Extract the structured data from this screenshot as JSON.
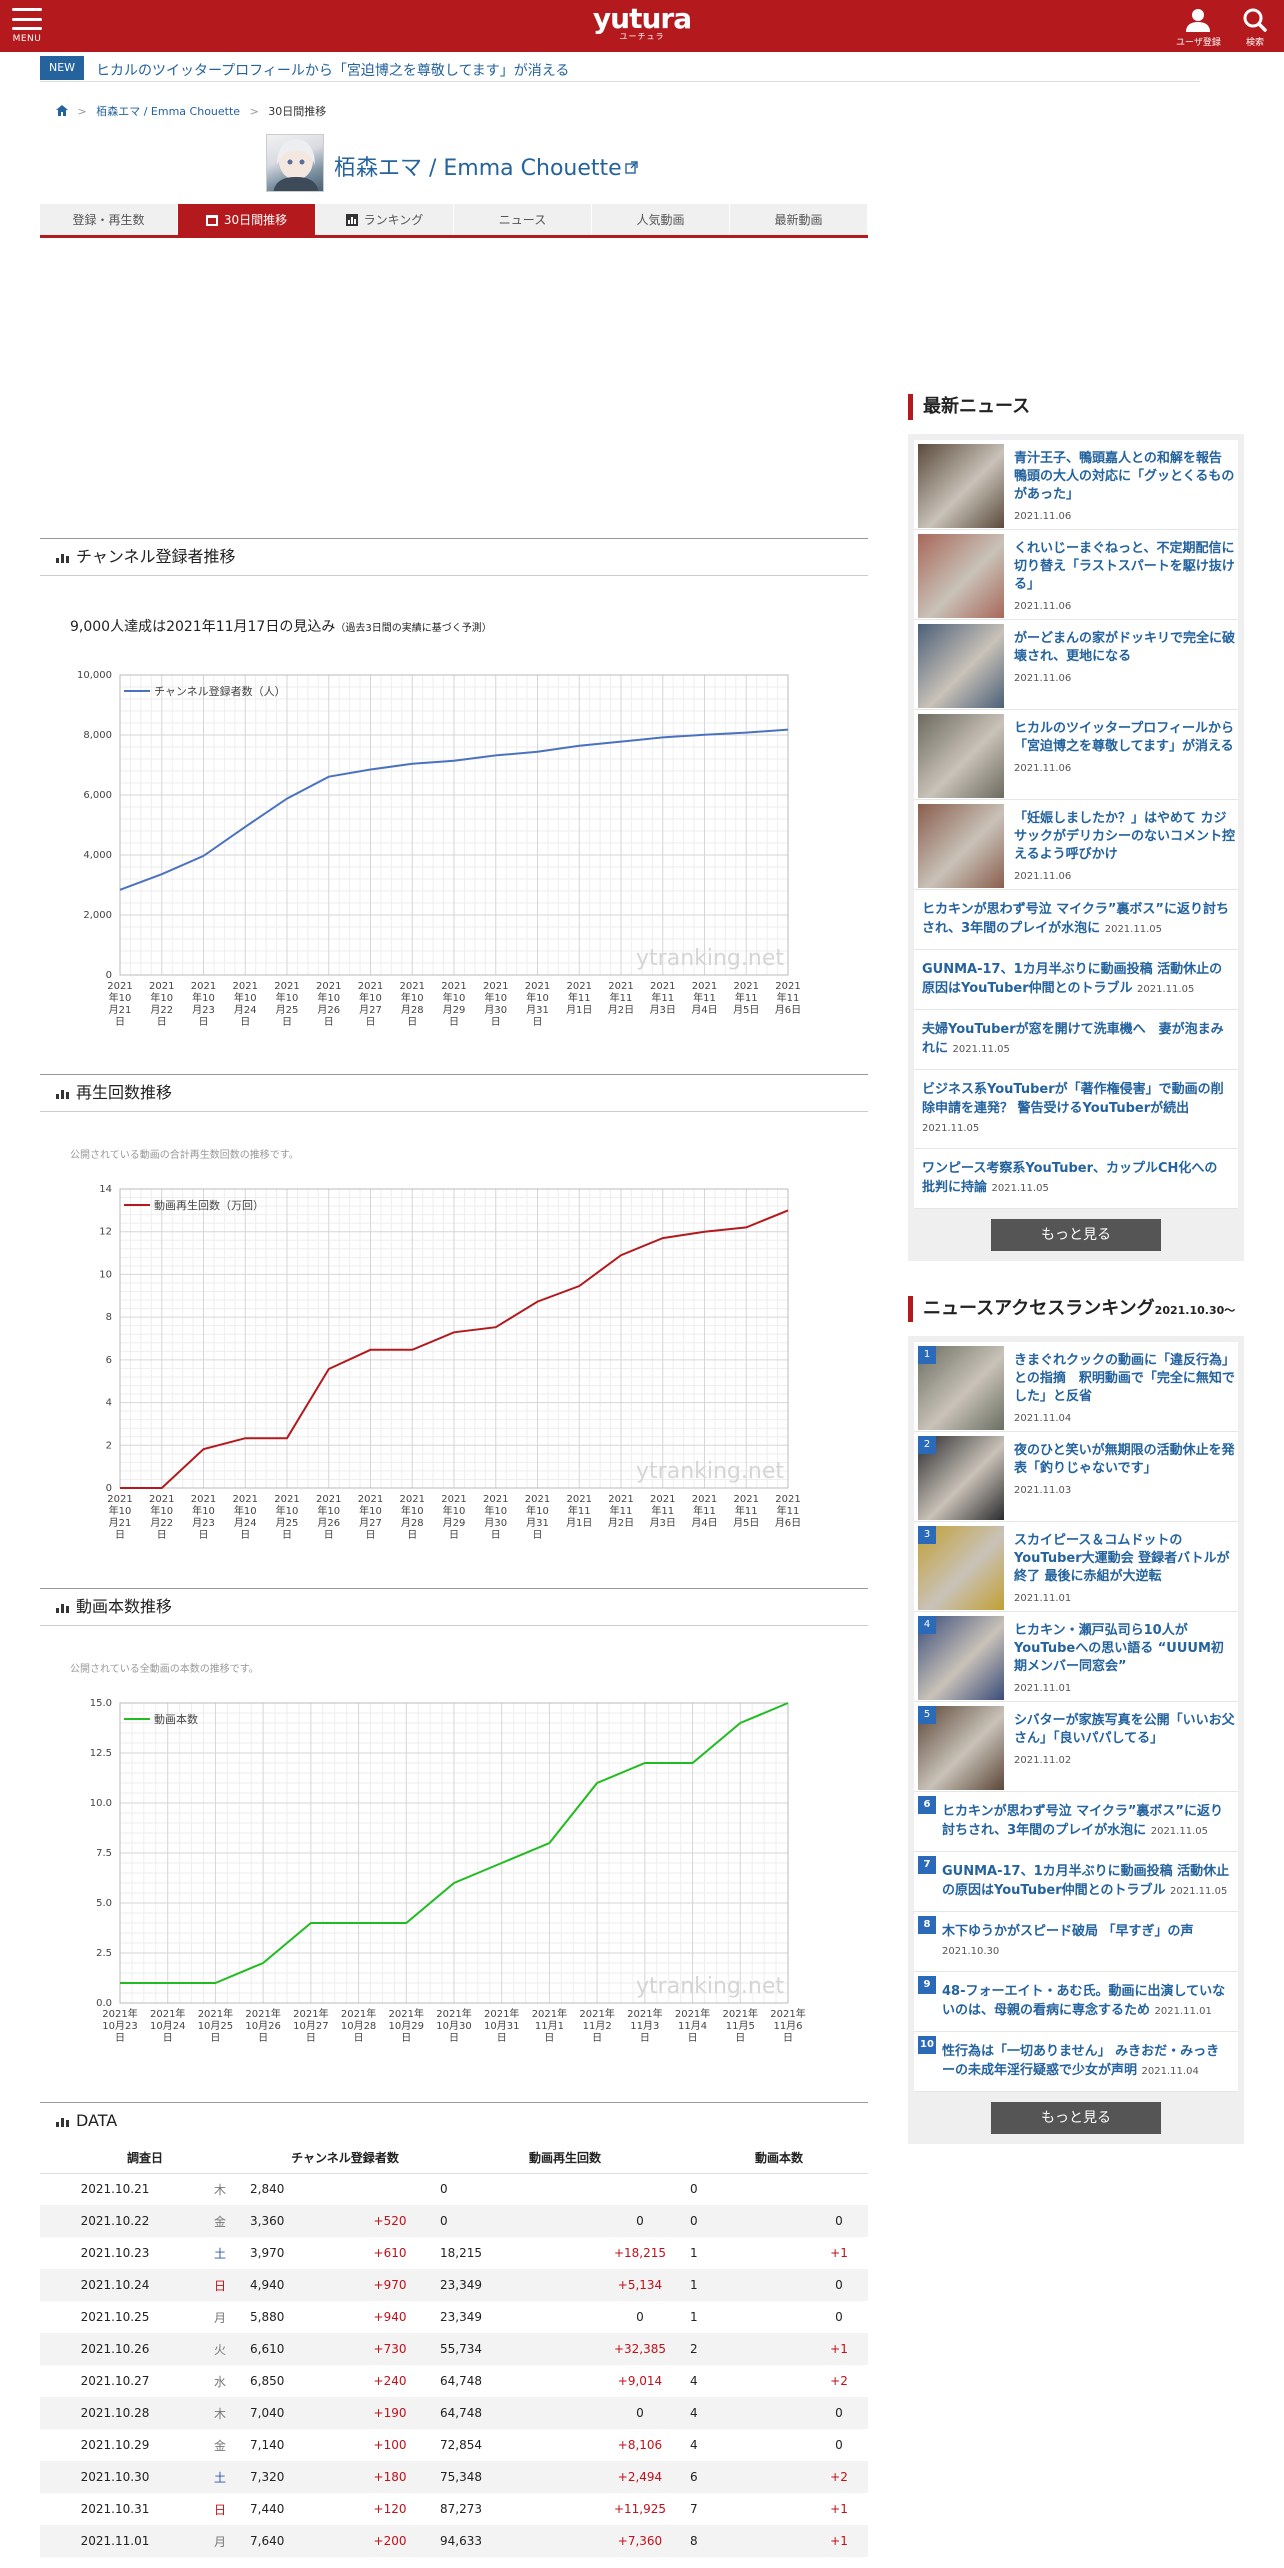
{
  "header": {
    "menu_label": "MENU",
    "logo": "yutura",
    "logo_sub": "ユーチュラ",
    "user_label": "ユーザ登録",
    "search_label": "検索",
    "colors": {
      "brand": "#b3191d",
      "link": "#24639e"
    }
  },
  "news_ticker": {
    "tag": "NEW",
    "title": "ヒカルのツイッタープロフィールから「宮迫博之を尊敬してます」が消える"
  },
  "breadcrumb": {
    "channel": "栢森エマ / Emma Chouette",
    "current": "30日間推移"
  },
  "channel": {
    "name": "栢森エマ / Emma Chouette"
  },
  "tabs": [
    {
      "label": "登録・再生数",
      "active": false
    },
    {
      "label": "30日間推移",
      "active": true
    },
    {
      "label": "ランキング",
      "active": false
    },
    {
      "label": "ニュース",
      "active": false
    },
    {
      "label": "人気動画",
      "active": false
    },
    {
      "label": "最新動画",
      "active": false
    }
  ],
  "sections": {
    "subscribers": "チャンネル登録者推移",
    "views": "再生回数推移",
    "videos": "動画本数推移",
    "data": "DATA"
  },
  "forecast": {
    "main": "9,000人達成は2021年11月17日の見込み",
    "sub": "（過去3日間の実績に基づく予測）"
  },
  "notes": {
    "views": "公開されている動画の合計再生数回数の推移です。",
    "videos": "公開されている全動画の本数の推移です。"
  },
  "watermark": "ytranking.net",
  "chart_data": [
    {
      "type": "line",
      "color": "#4a72c0",
      "x": [
        "2021年10月21日",
        "2021年10月22日",
        "2021年10月23日",
        "2021年10月24日",
        "2021年10月25日",
        "2021年10月26日",
        "2021年10月27日",
        "2021年10月28日",
        "2021年10月29日",
        "2021年10月30日",
        "2021年10月31日",
        "2021年11月1日",
        "2021年11月2日",
        "2021年11月3日",
        "2021年11月4日",
        "2021年11月5日",
        "2021年11月6日"
      ],
      "tick_labels": [
        [
          "2021",
          "年10",
          "月21",
          "日"
        ],
        [
          "2021",
          "年10",
          "月22",
          "日"
        ],
        [
          "2021",
          "年10",
          "月23",
          "日"
        ],
        [
          "2021",
          "年10",
          "月24",
          "日"
        ],
        [
          "2021",
          "年10",
          "月25",
          "日"
        ],
        [
          "2021",
          "年10",
          "月26",
          "日"
        ],
        [
          "2021",
          "年10",
          "月27",
          "日"
        ],
        [
          "2021",
          "年10",
          "月28",
          "日"
        ],
        [
          "2021",
          "年10",
          "月29",
          "日"
        ],
        [
          "2021",
          "年10",
          "月30",
          "日"
        ],
        [
          "2021",
          "年10",
          "月31",
          "日"
        ],
        [
          "2021",
          "年11",
          "月1日"
        ],
        [
          "2021",
          "年11",
          "月2日"
        ],
        [
          "2021",
          "年11",
          "月3日"
        ],
        [
          "2021",
          "年11",
          "月4日"
        ],
        [
          "2021",
          "年11",
          "月5日"
        ],
        [
          "2021",
          "年11",
          "月6日"
        ]
      ],
      "series": [
        {
          "name": "チャンネル登録者数（人）",
          "values": [
            2840,
            3360,
            3970,
            4940,
            5880,
            6610,
            6850,
            7040,
            7140,
            7320,
            7440,
            7640,
            7780,
            7920,
            8010,
            8080,
            8180
          ]
        }
      ],
      "yticks": [
        "0",
        "2,000",
        "4,000",
        "6,000",
        "8,000",
        "10,000"
      ],
      "ylim": [
        0,
        10000
      ],
      "grid": true,
      "legend": "top-left"
    },
    {
      "type": "line",
      "color": "#b3191d",
      "x": [
        "2021年10月21日",
        "2021年10月22日",
        "2021年10月23日",
        "2021年10月24日",
        "2021年10月25日",
        "2021年10月26日",
        "2021年10月27日",
        "2021年10月28日",
        "2021年10月29日",
        "2021年10月30日",
        "2021年10月31日",
        "2021年11月1日",
        "2021年11月2日",
        "2021年11月3日",
        "2021年11月4日",
        "2021年11月5日",
        "2021年11月6日"
      ],
      "tick_labels": [
        [
          "2021",
          "年10",
          "月21",
          "日"
        ],
        [
          "2021",
          "年10",
          "月22",
          "日"
        ],
        [
          "2021",
          "年10",
          "月23",
          "日"
        ],
        [
          "2021",
          "年10",
          "月24",
          "日"
        ],
        [
          "2021",
          "年10",
          "月25",
          "日"
        ],
        [
          "2021",
          "年10",
          "月26",
          "日"
        ],
        [
          "2021",
          "年10",
          "月27",
          "日"
        ],
        [
          "2021",
          "年10",
          "月28",
          "日"
        ],
        [
          "2021",
          "年10",
          "月29",
          "日"
        ],
        [
          "2021",
          "年10",
          "月30",
          "日"
        ],
        [
          "2021",
          "年10",
          "月31",
          "日"
        ],
        [
          "2021",
          "年11",
          "月1日"
        ],
        [
          "2021",
          "年11",
          "月2日"
        ],
        [
          "2021",
          "年11",
          "月3日"
        ],
        [
          "2021",
          "年11",
          "月4日"
        ],
        [
          "2021",
          "年11",
          "月5日"
        ],
        [
          "2021",
          "年11",
          "月6日"
        ]
      ],
      "series": [
        {
          "name": "動画再生回数（万回）",
          "values": [
            0,
            0,
            1.82,
            2.33,
            2.33,
            5.57,
            6.47,
            6.47,
            7.29,
            7.53,
            8.73,
            9.46,
            10.9,
            11.7,
            12.0,
            12.2,
            13.0
          ]
        }
      ],
      "yticks": [
        "0",
        "2",
        "4",
        "6",
        "8",
        "10",
        "12",
        "14"
      ],
      "ylim": [
        0,
        14
      ],
      "grid": true,
      "legend": "top-left"
    },
    {
      "type": "line",
      "color": "#22bb22",
      "x": [
        "2021年10月23日",
        "2021年10月24日",
        "2021年10月25日",
        "2021年10月26日",
        "2021年10月27日",
        "2021年10月28日",
        "2021年10月29日",
        "2021年10月30日",
        "2021年10月31日",
        "2021年11月1日",
        "2021年11月2日",
        "2021年11月3日",
        "2021年11月4日",
        "2021年11月5日",
        "2021年11月6日"
      ],
      "tick_labels": [
        [
          "2021年",
          "10月23",
          "日"
        ],
        [
          "2021年",
          "10月24",
          "日"
        ],
        [
          "2021年",
          "10月25",
          "日"
        ],
        [
          "2021年",
          "10月26",
          "日"
        ],
        [
          "2021年",
          "10月27",
          "日"
        ],
        [
          "2021年",
          "10月28",
          "日"
        ],
        [
          "2021年",
          "10月29",
          "日"
        ],
        [
          "2021年",
          "10月30",
          "日"
        ],
        [
          "2021年",
          "10月31",
          "日"
        ],
        [
          "2021年",
          "11月1",
          "日"
        ],
        [
          "2021年",
          "11月2",
          "日"
        ],
        [
          "2021年",
          "11月3",
          "日"
        ],
        [
          "2021年",
          "11月4",
          "日"
        ],
        [
          "2021年",
          "11月5",
          "日"
        ],
        [
          "2021年",
          "11月6",
          "日"
        ]
      ],
      "series": [
        {
          "name": "動画本数",
          "values": [
            1,
            1,
            1,
            2,
            4,
            4,
            4,
            6,
            7,
            8,
            11,
            12,
            12,
            14,
            15
          ]
        }
      ],
      "yticks": [
        "0.0",
        "2.5",
        "5.0",
        "7.5",
        "10.0",
        "12.5",
        "15.0"
      ],
      "ylim": [
        0,
        15
      ],
      "grid": true,
      "legend": "top-left"
    }
  ],
  "table": {
    "headers": [
      "調査日",
      "チャンネル登録者数",
      "動画再生回数",
      "動画本数"
    ],
    "rows": [
      {
        "date": "2021.10.21",
        "wd": "木",
        "wdc": "",
        "subs": "2,840",
        "subs_d": "",
        "views": "0",
        "views_d": "",
        "vids": "0",
        "vids_d": ""
      },
      {
        "date": "2021.10.22",
        "wd": "金",
        "wdc": "",
        "subs": "3,360",
        "subs_d": "+520",
        "views": "0",
        "views_d": "0",
        "vids": "0",
        "vids_d": "0"
      },
      {
        "date": "2021.10.23",
        "wd": "土",
        "wdc": "sat",
        "subs": "3,970",
        "subs_d": "+610",
        "views": "18,215",
        "views_d": "+18,215",
        "vids": "1",
        "vids_d": "+1"
      },
      {
        "date": "2021.10.24",
        "wd": "日",
        "wdc": "sun",
        "subs": "4,940",
        "subs_d": "+970",
        "views": "23,349",
        "views_d": "+5,134",
        "vids": "1",
        "vids_d": "0"
      },
      {
        "date": "2021.10.25",
        "wd": "月",
        "wdc": "",
        "subs": "5,880",
        "subs_d": "+940",
        "views": "23,349",
        "views_d": "0",
        "vids": "1",
        "vids_d": "0"
      },
      {
        "date": "2021.10.26",
        "wd": "火",
        "wdc": "",
        "subs": "6,610",
        "subs_d": "+730",
        "views": "55,734",
        "views_d": "+32,385",
        "vids": "2",
        "vids_d": "+1"
      },
      {
        "date": "2021.10.27",
        "wd": "水",
        "wdc": "",
        "subs": "6,850",
        "subs_d": "+240",
        "views": "64,748",
        "views_d": "+9,014",
        "vids": "4",
        "vids_d": "+2"
      },
      {
        "date": "2021.10.28",
        "wd": "木",
        "wdc": "",
        "subs": "7,040",
        "subs_d": "+190",
        "views": "64,748",
        "views_d": "0",
        "vids": "4",
        "vids_d": "0"
      },
      {
        "date": "2021.10.29",
        "wd": "金",
        "wdc": "",
        "subs": "7,140",
        "subs_d": "+100",
        "views": "72,854",
        "views_d": "+8,106",
        "vids": "4",
        "vids_d": "0"
      },
      {
        "date": "2021.10.30",
        "wd": "土",
        "wdc": "sat",
        "subs": "7,320",
        "subs_d": "+180",
        "views": "75,348",
        "views_d": "+2,494",
        "vids": "6",
        "vids_d": "+2"
      },
      {
        "date": "2021.10.31",
        "wd": "日",
        "wdc": "sun",
        "subs": "7,440",
        "subs_d": "+120",
        "views": "87,273",
        "views_d": "+11,925",
        "vids": "7",
        "vids_d": "+1"
      },
      {
        "date": "2021.11.01",
        "wd": "月",
        "wdc": "",
        "subs": "7,640",
        "subs_d": "+200",
        "views": "94,633",
        "views_d": "+7,360",
        "vids": "8",
        "vids_d": "+1"
      }
    ]
  },
  "sidebar": {
    "latest_title": "最新ニュース",
    "latest_more": "もっと見る",
    "latest": [
      {
        "title": "青汁王子、鴨頭嘉人との和解を報告 鴨頭の大人の対応に「グッとくるものがあった」",
        "date": "2021.11.06",
        "thumb": "#5a4a3c"
      },
      {
        "title": "くれいじーまぐねっと、不定期配信に切り替え「ラストスパートを駆け抜ける」",
        "date": "2021.11.06",
        "thumb": "#a8685a"
      },
      {
        "title": "がーどまんの家がドッキリで完全に破壊され、更地になる",
        "date": "2021.11.06",
        "thumb": "#4b5f78"
      },
      {
        "title": "ヒカルのツイッタープロフィールから「宮迫博之を尊敬してます」が消える",
        "date": "2021.11.06",
        "thumb": "#6c6a60"
      },
      {
        "title": "「妊娠しましたか？」はやめて カジサックがデリカシーのないコメント控えるよう呼びかけ",
        "date": "2021.11.06",
        "thumb": "#8a5e4e"
      }
    ],
    "latest_text": [
      {
        "title": "ヒカキンが思わず号泣 マイクラ”裏ボス”に返り討ちされ、3年間のプレイが水泡に",
        "date": "2021.11.05"
      },
      {
        "title": "GUNMA-17、1カ月半ぶりに動画投稿 活動休止の原因はYouTuber仲間とのトラブル",
        "date": "2021.11.05"
      },
      {
        "title": "夫婦YouTuberが窓を開けて洗車機へ　妻が泡まみれに",
        "date": "2021.11.05"
      },
      {
        "title": "ビジネス系YouTuberが「著作権侵害」で動画の削除申請を連発？ 警告受けるYouTuberが続出",
        "date": "2021.11.05"
      },
      {
        "title": "ワンピース考察系YouTuber、カップルCH化への批判に持論",
        "date": "2021.11.05"
      }
    ],
    "ranking_title": "ニュースアクセスランキング",
    "ranking_period": "2021.10.30～",
    "ranking_more": "もっと見る",
    "ranking": [
      {
        "rank": "1",
        "title": "きまぐれクックの動画に「違反行為」との指摘　釈明動画で「完全に無知でした」と反省",
        "date": "2021.11.04",
        "thumb": "#6a6e62"
      },
      {
        "rank": "2",
        "title": "夜のひと笑いが無期限の活動休止を発表「釣りじゃないです」",
        "date": "2021.11.03",
        "thumb": "#2a2a2e"
      },
      {
        "rank": "3",
        "title": "スカイピース＆コムドットのYouTuber大運動会 登録者バトルが終了 最後に赤組が大逆転",
        "date": "2021.11.01",
        "thumb": "#c2a034"
      },
      {
        "rank": "4",
        "title": "ヒカキン・瀬戸弘司ら10人がYouTubeへの思い語る “UUUM初期メンバー同窓会”",
        "date": "2021.11.01",
        "thumb": "#3a4c7a"
      },
      {
        "rank": "5",
        "title": "シバターが家族写真を公開「いいお父さん」「良いパパしてる」",
        "date": "2021.11.02",
        "thumb": "#5c4638"
      }
    ],
    "ranking_text": [
      {
        "rank": "6",
        "title": "ヒカキンが思わず号泣 マイクラ”裏ボス”に返り討ちされ、3年間のプレイが水泡に",
        "date": "2021.11.05"
      },
      {
        "rank": "7",
        "title": "GUNMA-17、1カ月半ぶりに動画投稿 活動休止の原因はYouTuber仲間とのトラブル",
        "date": "2021.11.05"
      },
      {
        "rank": "8",
        "title": "木下ゆうかがスピード破局 「早すぎ」の声",
        "date": "2021.10.30"
      },
      {
        "rank": "9",
        "title": "48-フォーエイト・あむ氏。動画に出演していないのは、母親の看病に専念するため",
        "date": "2021.11.01"
      },
      {
        "rank": "10",
        "title": "性行為は「一切ありません」 みきおだ・みっきーの未成年淫行疑惑で少女が声明",
        "date": "2021.11.04"
      }
    ]
  }
}
